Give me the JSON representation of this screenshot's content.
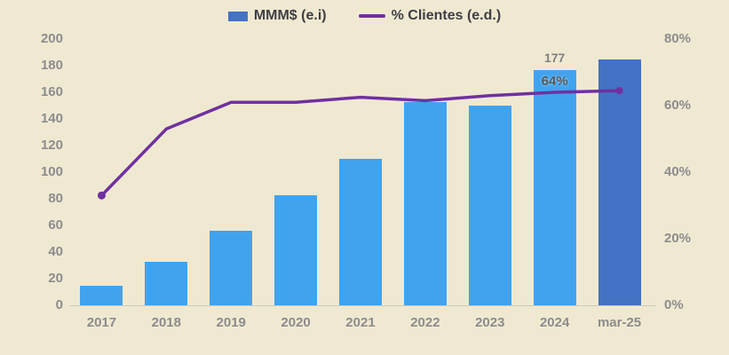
{
  "chart_data": {
    "type": "bar+line",
    "title": "",
    "categories": [
      "2017",
      "2018",
      "2019",
      "2020",
      "2021",
      "2022",
      "2023",
      "2024",
      "mar-25"
    ],
    "series": [
      {
        "name": "MMM$ (e.i)",
        "type": "bar",
        "axis": "left",
        "values": [
          15,
          33,
          56,
          83,
          110,
          153,
          150,
          177,
          185
        ],
        "color": "#41A3EE",
        "last_bar_color": "#4472C4"
      },
      {
        "name": "% Clientes (e.d.)",
        "type": "line",
        "axis": "right",
        "values": [
          33,
          53,
          61,
          61,
          62.5,
          61.5,
          63,
          64,
          64.5
        ],
        "color": "#7030A0",
        "markers": "first-and-last-point"
      }
    ],
    "left_axis": {
      "min": 0,
      "max": 200,
      "step": 20,
      "ticks": [
        "0",
        "20",
        "40",
        "60",
        "80",
        "100",
        "120",
        "140",
        "160",
        "180",
        "200"
      ]
    },
    "right_axis": {
      "min": 0,
      "max": 80,
      "step": 20,
      "ticks": [
        "0%",
        "20%",
        "40%",
        "60%",
        "80%"
      ]
    },
    "annotations": [
      {
        "series": "bar",
        "category": "2024",
        "index": 7,
        "text": "177"
      },
      {
        "series": "line",
        "category": "2024",
        "index": 7,
        "text": "64%"
      }
    ],
    "legend_position": "top-center",
    "gridlines": false,
    "colors": {
      "background": "#F0E9D2",
      "axis_text": "#8C8C8C",
      "legend_text": "#3E3E44",
      "bar_label_text": "#7F7F7F",
      "line_label_text": "#595959",
      "axis_line": "#CDC9B9"
    }
  }
}
